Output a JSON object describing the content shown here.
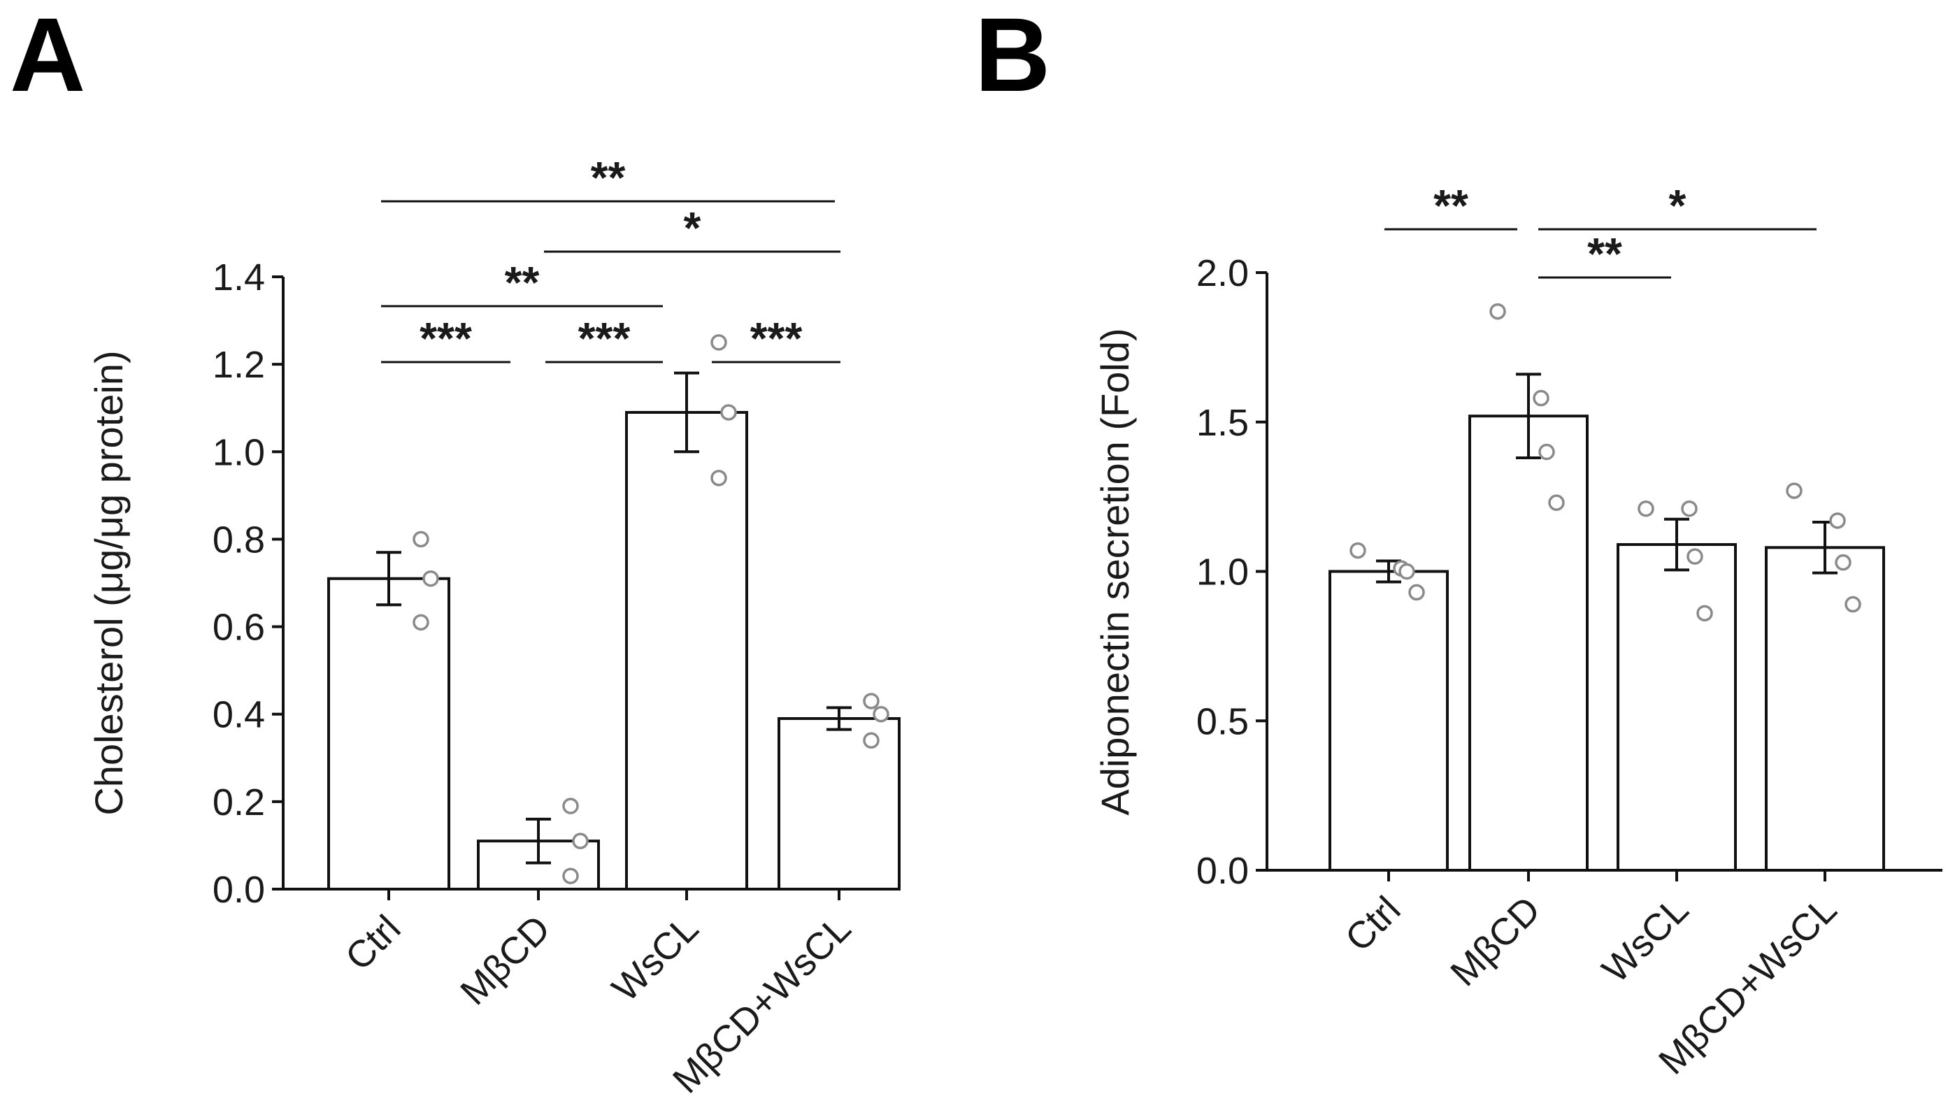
{
  "chart_data": [
    {
      "panel": "A",
      "type": "bar",
      "categories": [
        "Ctrl",
        "MβCD",
        "WsCL",
        "MβCD+WsCL"
      ],
      "values": [
        0.71,
        0.11,
        1.09,
        0.39
      ],
      "errors": [
        0.06,
        0.05,
        0.09,
        0.025
      ],
      "points": [
        [
          0.8,
          0.71,
          0.61
        ],
        [
          0.19,
          0.11,
          0.03
        ],
        [
          1.25,
          1.09,
          0.94
        ],
        [
          0.43,
          0.4,
          0.34
        ]
      ],
      "xlabel": "",
      "ylabel": "Cholesterol (μg/μg protein)",
      "ylim": [
        0,
        1.4
      ],
      "yticks": [
        "0.0",
        "0.2",
        "0.4",
        "0.6",
        "0.8",
        "1.0",
        "1.2",
        "1.4"
      ],
      "significance": [
        {
          "from": 0,
          "to": 1,
          "label": "***"
        },
        {
          "from": 1,
          "to": 2,
          "label": "***"
        },
        {
          "from": 2,
          "to": 3,
          "label": "***"
        },
        {
          "from": 0,
          "to": 2,
          "label": "**"
        },
        {
          "from": 1,
          "to": 3,
          "label": "*"
        },
        {
          "from": 0,
          "to": 3,
          "label": "**"
        }
      ]
    },
    {
      "panel": "B",
      "type": "bar",
      "categories": [
        "Ctrl",
        "MβCD",
        "WsCL",
        "MβCD+WsCL"
      ],
      "values": [
        1.0,
        1.52,
        1.09,
        1.08
      ],
      "errors": [
        0.035,
        0.14,
        0.085,
        0.085
      ],
      "points": [
        [
          1.07,
          1.01,
          1.0,
          0.93
        ],
        [
          1.87,
          1.58,
          1.4,
          1.23
        ],
        [
          1.21,
          1.21,
          1.05,
          0.86
        ],
        [
          1.27,
          1.17,
          1.03,
          0.89
        ]
      ],
      "xlabel": "",
      "ylabel": "Adiponectin secretion (Fold)",
      "ylim": [
        0,
        2.0
      ],
      "yticks": [
        "0.0",
        "0.5",
        "1.0",
        "1.5",
        "2.0"
      ],
      "significance": [
        {
          "from": 0,
          "to": 1,
          "label": "**"
        },
        {
          "from": 1,
          "to": 2,
          "label": "**"
        },
        {
          "from": 1,
          "to": 3,
          "label": "*"
        }
      ]
    }
  ]
}
